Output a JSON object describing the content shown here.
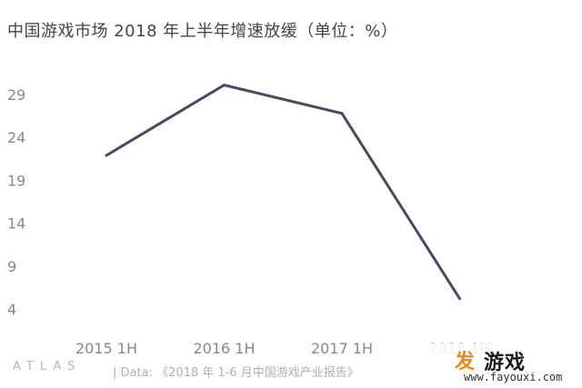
{
  "title": "中国游戏市场 2018 年上半年增速放缓（单位：%）",
  "footer": {
    "logo": "ATLAS",
    "source": "| Data: 《2018 年 1-6 月中国游戏产业报告》"
  },
  "watermark": {
    "icon": "发",
    "name": "游戏",
    "url": "www.fayouxi.com"
  },
  "colors": {
    "line": "#4a4862",
    "tick_text": "#888888",
    "background": "#ffffff"
  },
  "chart_data": {
    "type": "line",
    "title": "中国游戏市场 2018 年上半年增速放缓（单位：%）",
    "categories": [
      "2015 1H",
      "2016 1H",
      "2017 1H",
      "2018 1H"
    ],
    "values": [
      21.9,
      30.1,
      26.8,
      5.2
    ],
    "yticks": [
      4,
      9,
      14,
      19,
      24,
      29
    ],
    "ylim": [
      0,
      31.5
    ],
    "xlabel": "",
    "ylabel": "",
    "grid": false,
    "legend": "none"
  }
}
